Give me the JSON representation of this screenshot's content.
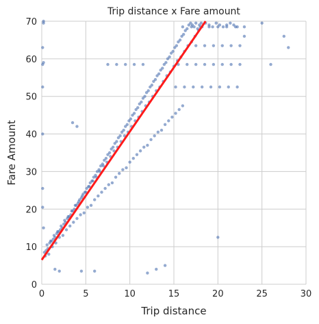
{
  "chart_data": {
    "type": "scatter",
    "title": "Trip distance x Fare amount",
    "xlabel": "Trip distance",
    "ylabel": "Fare Amount",
    "xlim": [
      0,
      30
    ],
    "ylim": [
      0,
      70
    ],
    "x_ticks": [
      "0",
      "5",
      "10",
      "15",
      "20",
      "25",
      "30"
    ],
    "y_ticks": [
      "0",
      "10",
      "20",
      "30",
      "40",
      "50",
      "60",
      "70"
    ],
    "grid": true,
    "point_color": "#4c72b0",
    "regression_color": "#ff1a1a",
    "regression_line": {
      "x": [
        0,
        18.6
      ],
      "y": [
        6.5,
        70
      ]
    },
    "points": {
      "x": [
        0.3,
        0.5,
        0.7,
        0.9,
        1.1,
        1.3,
        1.5,
        1.7,
        1.9,
        2.1,
        2.3,
        2.5,
        2.7,
        2.9,
        3.1,
        3.3,
        3.5,
        3.7,
        3.9,
        4.1,
        4.3,
        4.5,
        4.7,
        4.9,
        5.1,
        5.3,
        5.5,
        5.7,
        5.9,
        6.1,
        6.3,
        6.5,
        6.7,
        6.9,
        7.1,
        7.3,
        7.5,
        7.7,
        7.9,
        8.1,
        8.3,
        8.5,
        8.7,
        8.9,
        9.1,
        9.3,
        9.5,
        9.7,
        9.9,
        10.1,
        10.3,
        10.5,
        10.7,
        10.9,
        11.1,
        11.3,
        11.5,
        11.7,
        11.9,
        12.1,
        12.3,
        12.5,
        12.7,
        12.9,
        13.1,
        13.3,
        13.5,
        13.7,
        13.9,
        14.1,
        14.3,
        14.5,
        14.7,
        14.9,
        15.1,
        15.3,
        15.5,
        15.7,
        15.9,
        16.1,
        16.3,
        16.5,
        16.7,
        16.9,
        17.1,
        17.3,
        17.5,
        17.7,
        17.9,
        18.1,
        0.4,
        0.8,
        1.2,
        1.6,
        2.0,
        2.4,
        2.8,
        3.2,
        3.6,
        4.0,
        4.4,
        4.8,
        5.2,
        5.6,
        6.0,
        6.4,
        6.8,
        7.2,
        7.6,
        8.0,
        8.4,
        8.8,
        9.2,
        9.6,
        10.0,
        10.4,
        10.8,
        11.2,
        11.6,
        12.0,
        12.4,
        12.8,
        13.2,
        13.6,
        14.0,
        14.4,
        14.8,
        15.2,
        15.6,
        16.0,
        0.6,
        1.0,
        1.4,
        1.8,
        2.2,
        2.6,
        3.0,
        3.4,
        3.8,
        4.2,
        4.6,
        5.0,
        5.4,
        5.8,
        6.2,
        6.6,
        7.0,
        7.4,
        7.8,
        8.2,
        8.6,
        9.0,
        9.4,
        9.8,
        10.2,
        10.6,
        11.0,
        11.4,
        11.8,
        12.2,
        12.6,
        13.0,
        13.4,
        13.8,
        14.2,
        14.6,
        15.0,
        15.4,
        15.8,
        16.2,
        16.6,
        17.0,
        17.4,
        17.8,
        18.2,
        18.6,
        19.0,
        19.4,
        19.8,
        20.2,
        20.6,
        21.0,
        21.4,
        21.8,
        22.2,
        15.5,
        16.5,
        17.5,
        18.5,
        19.5,
        20.5,
        21.5,
        22.5,
        15.2,
        16.2,
        17.2,
        18.2,
        19.2,
        20.2,
        21.2,
        22.2,
        16.0,
        17.0,
        18.0,
        19.0,
        20.0,
        21.0,
        22.0,
        23.0,
        17.5,
        18.5,
        19.5,
        20.5,
        21.5,
        22.5,
        0.1,
        0.1,
        0.1,
        0.1,
        0.1,
        0.1,
        0.2,
        0.2,
        0.2,
        0.2,
        3.5,
        4.0,
        7.5,
        8.5,
        9.5,
        10.5,
        11.5,
        20.0,
        26.0,
        28.0,
        23.0,
        25.0,
        27.5,
        13.0,
        14.0,
        12.0,
        6.0,
        2.0,
        1.5,
        4.5
      ],
      "y": [
        8.5,
        9.0,
        9.5,
        11.0,
        11.5,
        12.0,
        12.5,
        13.5,
        14.0,
        14.5,
        15.0,
        16.0,
        16.5,
        17.5,
        18.0,
        18.5,
        19.5,
        20.0,
        21.0,
        21.5,
        22.5,
        23.0,
        24.0,
        24.5,
        25.5,
        26.0,
        27.0,
        27.5,
        28.5,
        29.0,
        30.0,
        30.5,
        31.5,
        32.0,
        33.0,
        33.5,
        34.5,
        35.0,
        36.0,
        36.5,
        37.5,
        38.0,
        39.0,
        39.5,
        40.5,
        41.0,
        42.0,
        42.5,
        43.5,
        44.0,
        45.0,
        45.5,
        46.5,
        47.0,
        48.0,
        48.5,
        49.5,
        50.0,
        51.0,
        51.5,
        52.5,
        53.0,
        54.0,
        54.5,
        55.5,
        56.0,
        57.0,
        57.5,
        58.5,
        59.0,
        60.0,
        60.5,
        61.5,
        62.0,
        63.0,
        63.5,
        64.5,
        65.0,
        66.0,
        66.5,
        67.5,
        68.0,
        69.0,
        69.5,
        69.0,
        68.5,
        69.5,
        68.0,
        69.0,
        69.5,
        7.5,
        8.0,
        10.0,
        11.0,
        12.5,
        13.0,
        14.5,
        15.5,
        16.5,
        17.5,
        18.5,
        19.0,
        20.5,
        21.0,
        22.5,
        23.5,
        24.5,
        25.5,
        26.5,
        27.0,
        28.5,
        29.5,
        30.5,
        31.0,
        32.5,
        33.5,
        34.5,
        35.5,
        36.5,
        37.0,
        38.5,
        39.5,
        40.5,
        41.0,
        42.5,
        43.5,
        44.5,
        45.5,
        46.5,
        47.5,
        10.5,
        11.5,
        13.0,
        14.0,
        15.5,
        17.0,
        18.0,
        19.5,
        21.0,
        22.0,
        23.5,
        24.5,
        26.0,
        27.5,
        28.5,
        30.0,
        31.5,
        32.5,
        34.0,
        35.5,
        36.5,
        38.0,
        39.5,
        40.5,
        42.0,
        43.5,
        44.5,
        46.0,
        47.5,
        48.5,
        50.0,
        51.5,
        52.5,
        54.0,
        55.5,
        56.5,
        58.0,
        59.5,
        60.5,
        62.0,
        63.5,
        64.5,
        66.0,
        67.5,
        68.5,
        69.5,
        69.0,
        68.5,
        69.5,
        69.0,
        68.5,
        69.0,
        69.5,
        69.0,
        68.5,
        58.5,
        58.5,
        58.5,
        58.5,
        58.5,
        58.5,
        58.5,
        58.5,
        52.5,
        52.5,
        52.5,
        52.5,
        52.5,
        52.5,
        52.5,
        52.5,
        68.5,
        68.5,
        68.5,
        68.5,
        68.5,
        68.5,
        68.5,
        68.5,
        63.5,
        63.5,
        63.5,
        63.5,
        63.5,
        63.5,
        52.5,
        63.0,
        58.5,
        40.0,
        25.5,
        20.5,
        70.0,
        59.0,
        69.5,
        15.0,
        43.0,
        42.0,
        58.5,
        58.5,
        58.5,
        58.5,
        58.5,
        12.5,
        58.5,
        63.0,
        66.0,
        69.5,
        66.0,
        4.0,
        5.0,
        3.0,
        3.5,
        3.5,
        4.0,
        3.5
      ]
    }
  }
}
